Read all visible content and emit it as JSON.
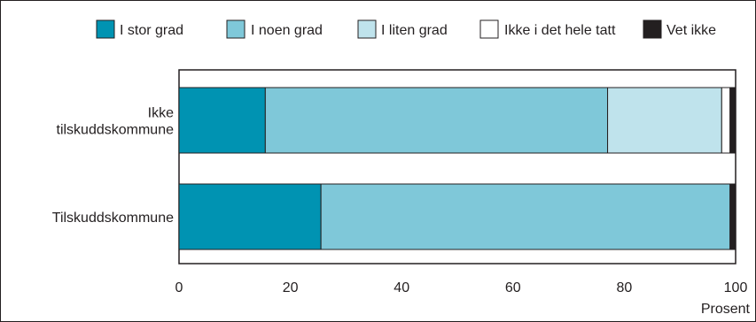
{
  "chart_data": {
    "type": "bar",
    "orientation": "horizontal",
    "stacked": true,
    "categories": [
      "Ikke tilskuddskommune",
      "Tilskuddskommune"
    ],
    "category_lines": [
      [
        "Ikke",
        "tilskuddskommune"
      ],
      [
        "Tilskuddskommune"
      ]
    ],
    "series": [
      {
        "name": "I stor grad",
        "color": "#0093b2",
        "values": [
          15.5,
          25.5
        ]
      },
      {
        "name": "I noen grad",
        "color": "#7fc8d9",
        "values": [
          61.5,
          73.5
        ]
      },
      {
        "name": "I liten grad",
        "color": "#bfe3ec",
        "values": [
          20.5,
          0
        ]
      },
      {
        "name": "Ikke i det hele tatt",
        "color": "#ffffff",
        "values": [
          1.5,
          0
        ]
      },
      {
        "name": "Vet ikke",
        "color": "#231f20",
        "values": [
          1.0,
          1.0
        ]
      }
    ],
    "xlabel": "Prosent",
    "ylabel": "",
    "xlim": [
      0,
      100
    ],
    "xticks": [
      0,
      20,
      40,
      60,
      80,
      100
    ],
    "grid": false,
    "legend_position": "top-right"
  }
}
